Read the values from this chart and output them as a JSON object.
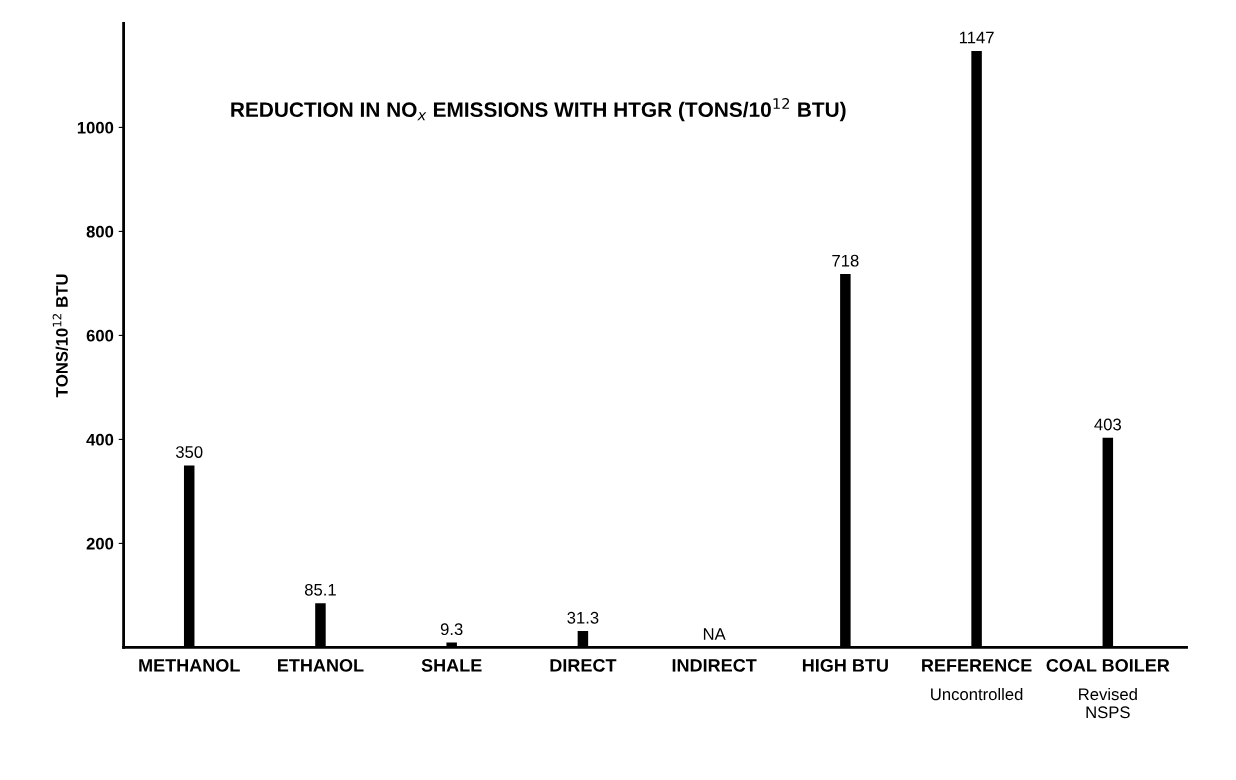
{
  "chart_data": {
    "type": "bar",
    "title": "REDUCTION IN NO$_{x}$ EMISSIONS WITH HTGR (TONS/10$^{12}$ BTU)",
    "ylabel": "TONS/10$^{12}$ BTU",
    "categories": [
      "METHANOL",
      "ETHANOL",
      "SHALE",
      "DIRECT",
      "INDIRECT",
      "HIGH BTU",
      "REFERENCE\nUncontrolled",
      "COAL BOILER\nRevised\nNSPS"
    ],
    "values": [
      350,
      85.1,
      9.3,
      31.3,
      null,
      718,
      1147,
      403
    ],
    "value_labels": [
      "350",
      "85.1",
      "9.3",
      "31.3",
      "NA",
      "718",
      "1147",
      "403"
    ],
    "color": "#000000",
    "ylim": [
      0,
      1200
    ],
    "yticks": [
      200,
      400,
      600,
      800,
      1000
    ],
    "grid": false
  }
}
